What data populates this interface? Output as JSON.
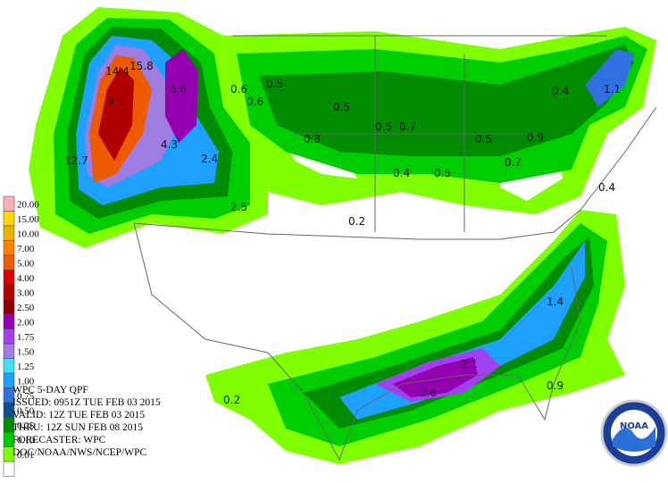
{
  "header": {
    "lines": [
      "WPC 5-DAY QPF",
      "ISSUED: 0951Z TUE FEB 03 2015",
      "VALID: 12Z TUE FEB 03 2015",
      "THRU: 12Z SUN FEB 08 2015",
      "FORECASTER: WPC",
      "DOC/NOAA/NWS/NCEP/WPC"
    ]
  },
  "legend": [
    {
      "label": "20.00",
      "color": "#ffaeb9"
    },
    {
      "label": "15.00",
      "color": "#ffd700"
    },
    {
      "label": "10.00",
      "color": "#e8b400"
    },
    {
      "label": "7.00",
      "color": "#ff7f00"
    },
    {
      "label": "5.00",
      "color": "#ee5a00"
    },
    {
      "label": "4.00",
      "color": "#e00000"
    },
    {
      "label": "3.00",
      "color": "#b00000"
    },
    {
      "label": "2.50",
      "color": "#8b0000"
    },
    {
      "label": "2.00",
      "color": "#9400b0"
    },
    {
      "label": "1.75",
      "color": "#a040f0"
    },
    {
      "label": "1.50",
      "color": "#9e7ce0"
    },
    {
      "label": "1.25",
      "color": "#40e0f0"
    },
    {
      "label": "1.00",
      "color": "#1ea0ff"
    },
    {
      "label": "0.75",
      "color": "#3070e0"
    },
    {
      "label": "0.50",
      "color": "#104e8b"
    },
    {
      "label": "0.25",
      "color": "#008b00"
    },
    {
      "label": "0.10",
      "color": "#00cd00"
    },
    {
      "label": "0.01",
      "color": "#7fff00"
    }
  ],
  "points": [
    "14.4",
    "15.8",
    "9.1",
    "6.6",
    "4.3",
    "12.7",
    "2.4",
    "2.5",
    "0.6",
    "0.5",
    "0.6",
    "0.5",
    "0.3",
    "0.5",
    "0.7",
    "0.5",
    "0.9",
    "0.7",
    "0.4",
    "0.5",
    "0.4",
    "1.1",
    "0.4",
    "0.2",
    "1.4",
    "2.1",
    "2.6",
    "0.9",
    "0.2"
  ],
  "logo": "NOAA"
}
